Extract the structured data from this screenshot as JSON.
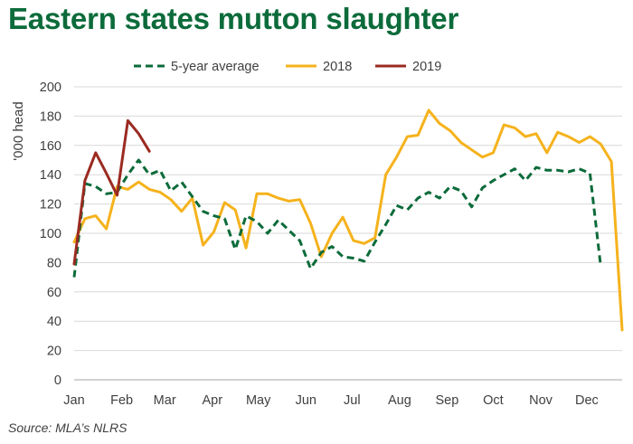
{
  "title": "Eastern states mutton slaughter",
  "source": "Source: MLA’s NLRS",
  "colors": {
    "five_year_average": "#0c6b3a",
    "y2018": "#f5b21c",
    "y2019": "#9b2a21",
    "grid": "#d9d9d9",
    "title": "#0c6b3a"
  },
  "chart_data": {
    "type": "line",
    "title": "Eastern states mutton slaughter",
    "xlabel": "",
    "ylabel": "'000 head",
    "ylim": [
      0,
      200
    ],
    "yticks": [
      0,
      20,
      40,
      60,
      80,
      100,
      120,
      140,
      160,
      180,
      200
    ],
    "xlim": [
      1,
      52
    ],
    "x_unit": "week of year",
    "month_ticks": [
      {
        "label": "Jan",
        "week": 1
      },
      {
        "label": "Feb",
        "week": 5.43
      },
      {
        "label": "Mar",
        "week": 9.43
      },
      {
        "label": "Apr",
        "week": 13.86
      },
      {
        "label": "May",
        "week": 18.14
      },
      {
        "label": "Jun",
        "week": 22.57
      },
      {
        "label": "Jul",
        "week": 26.86
      },
      {
        "label": "Aug",
        "week": 31.29
      },
      {
        "label": "Sep",
        "week": 35.71
      },
      {
        "label": "Oct",
        "week": 40
      },
      {
        "label": "Nov",
        "week": 44.43
      },
      {
        "label": "Dec",
        "week": 48.71
      }
    ],
    "grid": "horizontal",
    "legend_position": "top",
    "series": [
      {
        "name": "5-year average",
        "style": "dashed",
        "x": [
          1,
          2,
          3,
          4,
          5,
          6,
          7,
          8,
          9,
          10,
          11,
          12,
          13,
          14,
          15,
          16,
          17,
          18,
          19,
          20,
          21,
          22,
          23,
          24,
          25,
          26,
          27,
          28,
          29,
          30,
          31,
          32,
          33,
          34,
          35,
          36,
          37,
          38,
          39,
          40,
          41,
          42,
          43,
          44,
          45,
          46,
          47,
          48,
          49,
          50,
          51,
          52
        ],
        "values": [
          70,
          134,
          132,
          127,
          128,
          140,
          150,
          140,
          143,
          129,
          135,
          125,
          115,
          112,
          110,
          89,
          112,
          108,
          100,
          109,
          102,
          95,
          76,
          87,
          91,
          84,
          83,
          81,
          94,
          106,
          119,
          116,
          124,
          128,
          124,
          132,
          129,
          118,
          131,
          136,
          140,
          144,
          136,
          145,
          143,
          143,
          142,
          144,
          141,
          78,
          null,
          null
        ]
      },
      {
        "name": "2018",
        "style": "solid",
        "x": [
          1,
          2,
          3,
          4,
          5,
          6,
          7,
          8,
          9,
          10,
          11,
          12,
          13,
          14,
          15,
          16,
          17,
          18,
          19,
          20,
          21,
          22,
          23,
          24,
          25,
          26,
          27,
          28,
          29,
          30,
          31,
          32,
          33,
          34,
          35,
          36,
          37,
          38,
          39,
          40,
          41,
          42,
          43,
          44,
          45,
          46,
          47,
          48,
          49,
          50,
          51,
          52
        ],
        "values": [
          94,
          110,
          112,
          103,
          132,
          130,
          135,
          130,
          128,
          123,
          115,
          124,
          92,
          101,
          121,
          116,
          90,
          127,
          127,
          124,
          122,
          123,
          107,
          84,
          100,
          111,
          95,
          93,
          97,
          140,
          152,
          166,
          167,
          184,
          175,
          170,
          162,
          157,
          152,
          155,
          174,
          172,
          166,
          168,
          155,
          169,
          166,
          162,
          166,
          161,
          149,
          34
        ]
      },
      {
        "name": "2019",
        "style": "solid",
        "x": [
          1,
          2,
          3,
          4,
          5,
          6,
          7,
          8
        ],
        "values": [
          79,
          136,
          155,
          141,
          126,
          177,
          168,
          156
        ]
      }
    ]
  }
}
